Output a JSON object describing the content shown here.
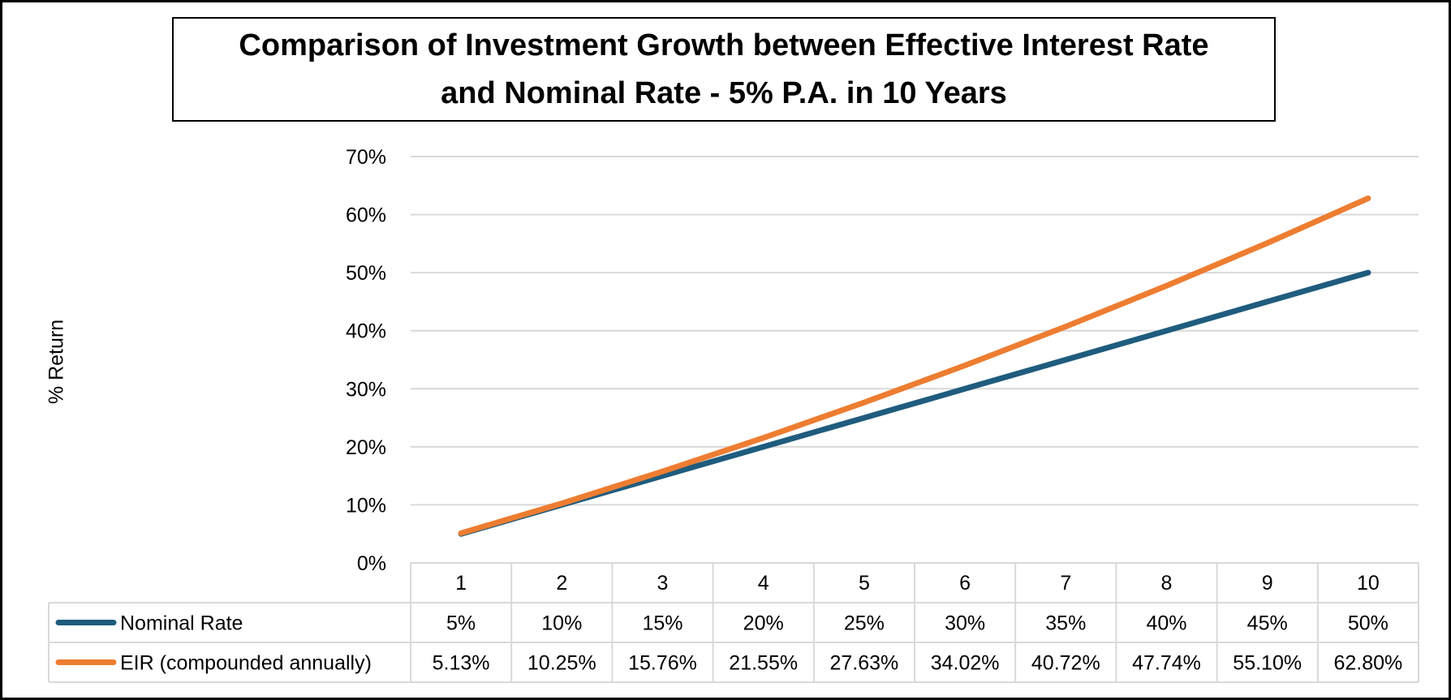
{
  "chart_data": {
    "type": "line",
    "title": "Comparison of Investment Growth between Effective Interest Rate\nand Nominal Rate - 5% P.A. in 10 Years",
    "xlabel": "",
    "ylabel": "% Return",
    "ylim": [
      0,
      70
    ],
    "y_ticks": [
      "0%",
      "10%",
      "20%",
      "30%",
      "40%",
      "50%",
      "60%",
      "70%"
    ],
    "categories": [
      "1",
      "2",
      "3",
      "4",
      "5",
      "6",
      "7",
      "8",
      "9",
      "10"
    ],
    "grid": true,
    "legend": "data-table",
    "series": [
      {
        "name": "Nominal Rate",
        "color": "#1F5C7E",
        "values": [
          5,
          10,
          15,
          20,
          25,
          30,
          35,
          40,
          45,
          50
        ],
        "labels": [
          "5%",
          "10%",
          "15%",
          "20%",
          "25%",
          "30%",
          "35%",
          "40%",
          "45%",
          "50%"
        ]
      },
      {
        "name": "EIR (compounded annually)",
        "color": "#ED7D31",
        "values": [
          5.13,
          10.25,
          15.76,
          21.55,
          27.63,
          34.02,
          40.72,
          47.74,
          55.1,
          62.8
        ],
        "labels": [
          "5.13%",
          "10.25%",
          "15.76%",
          "21.55%",
          "27.63%",
          "34.02%",
          "40.72%",
          "47.74%",
          "55.10%",
          "62.80%"
        ]
      }
    ]
  }
}
